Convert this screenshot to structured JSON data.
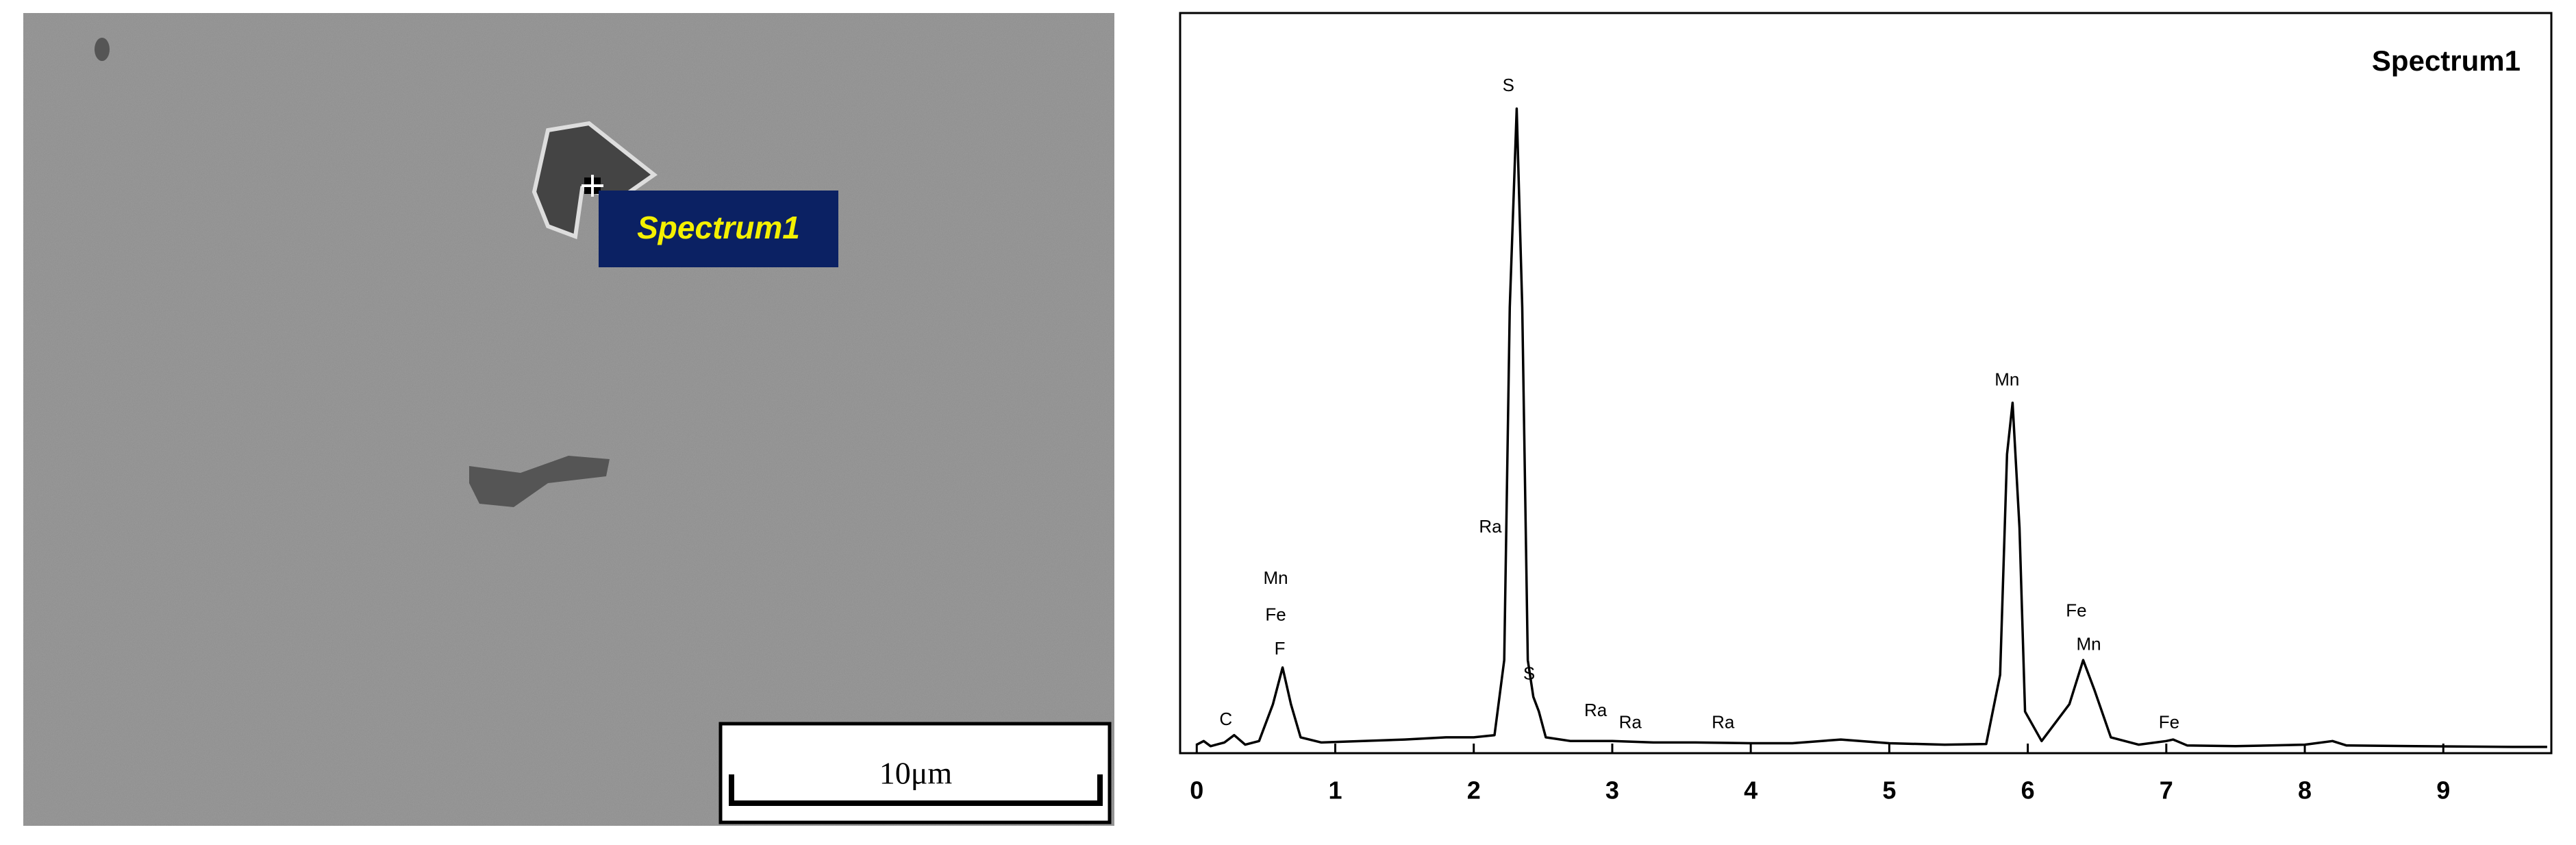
{
  "micrograph": {
    "marker_label": "Spectrum1",
    "scale_bar": "10μm"
  },
  "chart_data": {
    "type": "line",
    "title": "Spectrum1",
    "color": "#000000",
    "x": [
      0.0,
      0.05,
      0.1,
      0.2,
      0.27,
      0.35,
      0.45,
      0.55,
      0.62,
      0.68,
      0.75,
      0.9,
      1.2,
      1.5,
      1.8,
      2.0,
      2.15,
      2.22,
      2.26,
      2.31,
      2.35,
      2.39,
      2.43,
      2.47,
      2.52,
      2.7,
      3.0,
      3.3,
      3.6,
      4.0,
      4.3,
      4.65,
      5.0,
      5.4,
      5.7,
      5.8,
      5.85,
      5.89,
      5.94,
      5.98,
      6.1,
      6.3,
      6.4,
      6.48,
      6.6,
      6.8,
      7.0,
      7.05,
      7.15,
      7.5,
      8.0,
      8.2,
      8.3,
      8.8,
      9.5,
      9.75
    ],
    "values": [
      0.5,
      1,
      0.3,
      0.8,
      1.8,
      0.5,
      1,
      6,
      11,
      6,
      1.5,
      0.8,
      1,
      1.2,
      1.5,
      1.5,
      1.8,
      12,
      60,
      87,
      60,
      12,
      7,
      5,
      1.5,
      1,
      1,
      0.8,
      0.8,
      0.7,
      0.7,
      1.2,
      0.7,
      0.5,
      0.6,
      10,
      40,
      47,
      30,
      5,
      1,
      6,
      12,
      8,
      1.5,
      0.5,
      1,
      1.2,
      0.4,
      0.3,
      0.5,
      1,
      0.4,
      0.3,
      0.2,
      0.2
    ],
    "xlim": [
      -0.12,
      9.78
    ],
    "ylim": [
      0,
      100
    ],
    "xticks": [
      0,
      1,
      2,
      3,
      4,
      5,
      6,
      7,
      8,
      9
    ],
    "annotations": [
      {
        "text": "S",
        "x": 2.25,
        "y": 90
      },
      {
        "text": "Ra",
        "x": 2.12,
        "y": 30
      },
      {
        "text": "S",
        "x": 2.4,
        "y": 10
      },
      {
        "text": "Ra",
        "x": 2.88,
        "y": 5
      },
      {
        "text": "Ra",
        "x": 3.13,
        "y": 3.4
      },
      {
        "text": "Ra",
        "x": 3.8,
        "y": 3.4
      },
      {
        "text": "C",
        "x": 0.21,
        "y": 3.8
      },
      {
        "text": "F",
        "x": 0.6,
        "y": 13.4
      },
      {
        "text": "Fe",
        "x": 0.57,
        "y": 18
      },
      {
        "text": "Mn",
        "x": 0.57,
        "y": 23
      },
      {
        "text": "Mn",
        "x": 5.85,
        "y": 50
      },
      {
        "text": "Fe",
        "x": 6.35,
        "y": 18.6
      },
      {
        "text": "Mn",
        "x": 6.44,
        "y": 14
      },
      {
        "text": "Fe",
        "x": 7.02,
        "y": 3.4
      }
    ]
  }
}
